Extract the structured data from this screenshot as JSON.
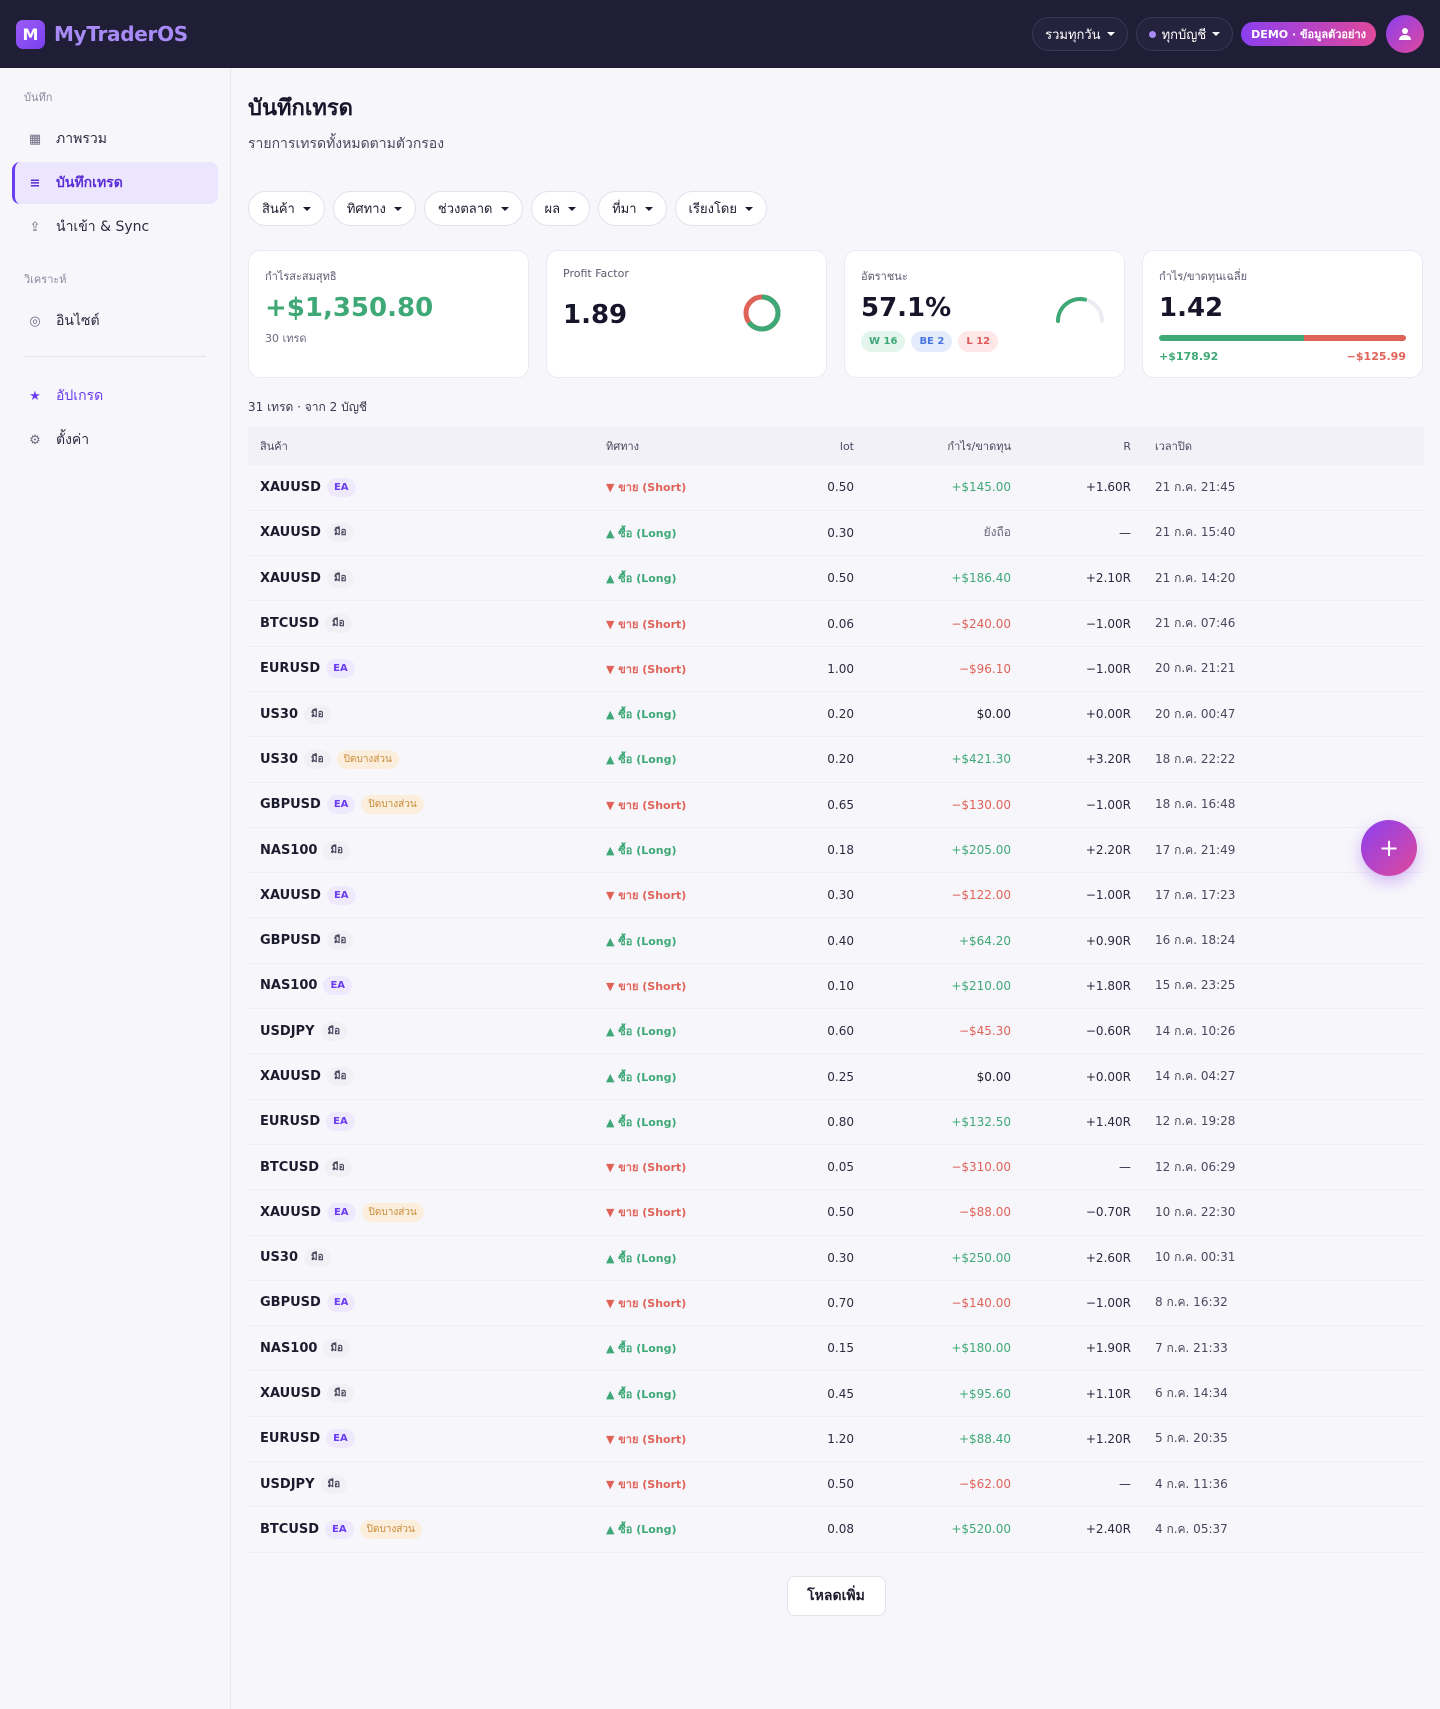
{
  "brand": {
    "logo_letter": "M",
    "name": "MyTraderOS"
  },
  "topbar": {
    "range_label": "รวมทุกวัน",
    "account_label": "ทุกบัญชี",
    "demo_label": "DEMO · ข้อมูลตัวอย่าง"
  },
  "sidebar": {
    "section_journal": "บันทึก",
    "section_analyze": "วิเคราะห์",
    "items": [
      {
        "label": "ภาพรวม",
        "icon": "grid-icon"
      },
      {
        "label": "บันทึกเทรด",
        "icon": "list-icon"
      },
      {
        "label": "นำเข้า & Sync",
        "icon": "upload-icon"
      },
      {
        "label": "อินไซต์",
        "icon": "target-icon"
      },
      {
        "label": "อัปเกรด",
        "icon": "star-icon"
      },
      {
        "label": "ตั้งค่า",
        "icon": "gear-icon"
      }
    ]
  },
  "page": {
    "title": "บันทึกเทรด",
    "subtitle": "รายการเทรดทั้งหมดตามตัวกรอง"
  },
  "filters": [
    "สินค้า",
    "ทิศทาง",
    "ช่วงตลาด",
    "ผล",
    "ที่มา",
    "เรียงโดย"
  ],
  "cards": {
    "net": {
      "label": "กำไรสะสมสุทธิ",
      "value": "+$1,350.80",
      "sub": "30 เทรด"
    },
    "pf": {
      "label": "Profit Factor",
      "value": "1.89"
    },
    "winrate": {
      "label": "อัตราชนะ",
      "value": "57.1%",
      "w": "W 16",
      "be": "BE 2",
      "l": "L 12"
    },
    "avg": {
      "label": "กำไร/ขาดทุนเฉลี่ย",
      "value": "1.42",
      "pos": "+$178.92",
      "neg": "−$125.99"
    }
  },
  "count_line": "31 เทรด · จาก 2 บัญชี",
  "table": {
    "headers": {
      "symbol": "สินค้า",
      "direction": "ทิศทาง",
      "lot": "lot",
      "pnl": "กำไร/ขาดทุน",
      "r": "R",
      "close": "เวลาปิด"
    },
    "rows": [
      {
        "symbol": "XAUUSD",
        "source": "EA",
        "partial": "",
        "dir": "▼ ขาย (Short)",
        "lot": "0.50",
        "pnl": "+$145.00",
        "r": "+1.60R",
        "time": "21 ก.ค. 21:45"
      },
      {
        "symbol": "XAUUSD",
        "source": "มือ",
        "partial": "",
        "dir": "▲ ซื้อ (Long)",
        "lot": "0.30",
        "pnl": "ยังถือ",
        "r": "—",
        "time": "21 ก.ค. 15:40"
      },
      {
        "symbol": "XAUUSD",
        "source": "มือ",
        "partial": "",
        "dir": "▲ ซื้อ (Long)",
        "lot": "0.50",
        "pnl": "+$186.40",
        "r": "+2.10R",
        "time": "21 ก.ค. 14:20"
      },
      {
        "symbol": "BTCUSD",
        "source": "มือ",
        "partial": "",
        "dir": "▼ ขาย (Short)",
        "lot": "0.06",
        "pnl": "−$240.00",
        "r": "−1.00R",
        "time": "21 ก.ค. 07:46"
      },
      {
        "symbol": "EURUSD",
        "source": "EA",
        "partial": "",
        "dir": "▼ ขาย (Short)",
        "lot": "1.00",
        "pnl": "−$96.10",
        "r": "−1.00R",
        "time": "20 ก.ค. 21:21"
      },
      {
        "symbol": "US30",
        "source": "มือ",
        "partial": "",
        "dir": "▲ ซื้อ (Long)",
        "lot": "0.20",
        "pnl": "$0.00",
        "r": "+0.00R",
        "time": "20 ก.ค. 00:47"
      },
      {
        "symbol": "US30",
        "source": "มือ",
        "partial": "ปิดบางส่วน",
        "dir": "▲ ซื้อ (Long)",
        "lot": "0.20",
        "pnl": "+$421.30",
        "r": "+3.20R",
        "time": "18 ก.ค. 22:22"
      },
      {
        "symbol": "GBPUSD",
        "source": "EA",
        "partial": "ปิดบางส่วน",
        "dir": "▼ ขาย (Short)",
        "lot": "0.65",
        "pnl": "−$130.00",
        "r": "−1.00R",
        "time": "18 ก.ค. 16:48"
      },
      {
        "symbol": "NAS100",
        "source": "มือ",
        "partial": "",
        "dir": "▲ ซื้อ (Long)",
        "lot": "0.18",
        "pnl": "+$205.00",
        "r": "+2.20R",
        "time": "17 ก.ค. 21:49"
      },
      {
        "symbol": "XAUUSD",
        "source": "EA",
        "partial": "",
        "dir": "▼ ขาย (Short)",
        "lot": "0.30",
        "pnl": "−$122.00",
        "r": "−1.00R",
        "time": "17 ก.ค. 17:23"
      },
      {
        "symbol": "GBPUSD",
        "source": "มือ",
        "partial": "",
        "dir": "▲ ซื้อ (Long)",
        "lot": "0.40",
        "pnl": "+$64.20",
        "r": "+0.90R",
        "time": "16 ก.ค. 18:24"
      },
      {
        "symbol": "NAS100",
        "source": "EA",
        "partial": "",
        "dir": "▼ ขาย (Short)",
        "lot": "0.10",
        "pnl": "+$210.00",
        "r": "+1.80R",
        "time": "15 ก.ค. 23:25"
      },
      {
        "symbol": "USDJPY",
        "source": "มือ",
        "partial": "",
        "dir": "▲ ซื้อ (Long)",
        "lot": "0.60",
        "pnl": "−$45.30",
        "r": "−0.60R",
        "time": "14 ก.ค. 10:26"
      },
      {
        "symbol": "XAUUSD",
        "source": "มือ",
        "partial": "",
        "dir": "▲ ซื้อ (Long)",
        "lot": "0.25",
        "pnl": "$0.00",
        "r": "+0.00R",
        "time": "14 ก.ค. 04:27"
      },
      {
        "symbol": "EURUSD",
        "source": "EA",
        "partial": "",
        "dir": "▲ ซื้อ (Long)",
        "lot": "0.80",
        "pnl": "+$132.50",
        "r": "+1.40R",
        "time": "12 ก.ค. 19:28"
      },
      {
        "symbol": "BTCUSD",
        "source": "มือ",
        "partial": "",
        "dir": "▼ ขาย (Short)",
        "lot": "0.05",
        "pnl": "−$310.00",
        "r": "—",
        "time": "12 ก.ค. 06:29"
      },
      {
        "symbol": "XAUUSD",
        "source": "EA",
        "partial": "ปิดบางส่วน",
        "dir": "▼ ขาย (Short)",
        "lot": "0.50",
        "pnl": "−$88.00",
        "r": "−0.70R",
        "time": "10 ก.ค. 22:30"
      },
      {
        "symbol": "US30",
        "source": "มือ",
        "partial": "",
        "dir": "▲ ซื้อ (Long)",
        "lot": "0.30",
        "pnl": "+$250.00",
        "r": "+2.60R",
        "time": "10 ก.ค. 00:31"
      },
      {
        "symbol": "GBPUSD",
        "source": "EA",
        "partial": "",
        "dir": "▼ ขาย (Short)",
        "lot": "0.70",
        "pnl": "−$140.00",
        "r": "−1.00R",
        "time": "8 ก.ค. 16:32"
      },
      {
        "symbol": "NAS100",
        "source": "มือ",
        "partial": "",
        "dir": "▲ ซื้อ (Long)",
        "lot": "0.15",
        "pnl": "+$180.00",
        "r": "+1.90R",
        "time": "7 ก.ค. 21:33"
      },
      {
        "symbol": "XAUUSD",
        "source": "มือ",
        "partial": "",
        "dir": "▲ ซื้อ (Long)",
        "lot": "0.45",
        "pnl": "+$95.60",
        "r": "+1.10R",
        "time": "6 ก.ค. 14:34"
      },
      {
        "symbol": "EURUSD",
        "source": "EA",
        "partial": "",
        "dir": "▼ ขาย (Short)",
        "lot": "1.20",
        "pnl": "+$88.40",
        "r": "+1.20R",
        "time": "5 ก.ค. 20:35"
      },
      {
        "symbol": "USDJPY",
        "source": "มือ",
        "partial": "",
        "dir": "▼ ขาย (Short)",
        "lot": "0.50",
        "pnl": "−$62.00",
        "r": "—",
        "time": "4 ก.ค. 11:36"
      },
      {
        "symbol": "BTCUSD",
        "source": "EA",
        "partial": "ปิดบางส่วน",
        "dir": "▲ ซื้อ (Long)",
        "lot": "0.08",
        "pnl": "+$520.00",
        "r": "+2.40R",
        "time": "4 ก.ค. 05:37"
      }
    ]
  },
  "load_more": "โหลดเพิ่ม",
  "fab_label": "+",
  "colors": {
    "accent": "#6b3df0",
    "positive": "#3fa877",
    "negative": "#e0635a"
  }
}
